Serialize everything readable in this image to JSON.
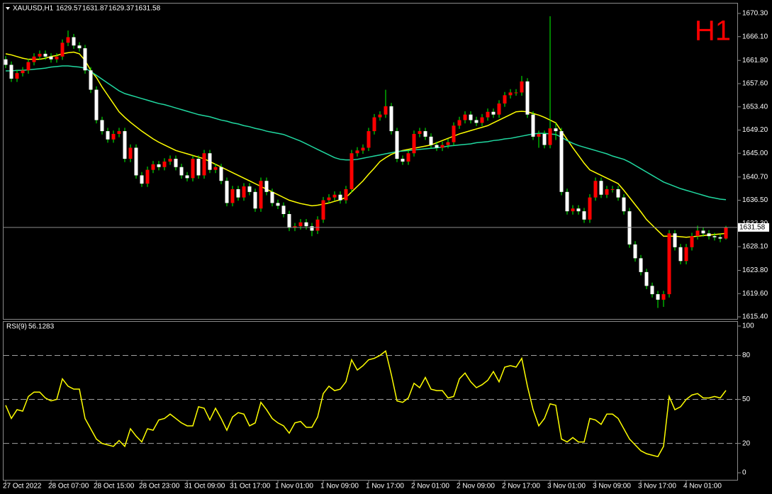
{
  "chart_data": [
    {
      "type": "candlestick",
      "title": "XAUUSD,H1",
      "timeframe": "H1",
      "categories": [
        "27 Oct 2022",
        null,
        null,
        null,
        null,
        null,
        null,
        null,
        "28 Oct 07:00",
        null,
        null,
        null,
        null,
        null,
        null,
        null,
        "28 Oct 15:00",
        null,
        null,
        null,
        null,
        null,
        null,
        null,
        "28 Oct 23:00",
        null,
        null,
        null,
        null,
        null,
        null,
        null,
        "31 Oct 09:00",
        null,
        null,
        null,
        null,
        null,
        null,
        null,
        "31 Oct 17:00",
        null,
        null,
        null,
        null,
        null,
        null,
        null,
        "1 Nov 01:00",
        null,
        null,
        null,
        null,
        null,
        null,
        null,
        "1 Nov 09:00",
        null,
        null,
        null,
        null,
        null,
        null,
        null,
        "1 Nov 17:00",
        null,
        null,
        null,
        null,
        null,
        null,
        null,
        "2 Nov 01:00",
        null,
        null,
        null,
        null,
        null,
        null,
        null,
        "2 Nov 09:00",
        null,
        null,
        null,
        null,
        null,
        null,
        null,
        "2 Nov 17:00",
        null,
        null,
        null,
        null,
        null,
        null,
        null,
        "3 Nov 01:00",
        null,
        null,
        null,
        null,
        null,
        null,
        null,
        "3 Nov 09:00",
        null,
        null,
        null,
        null,
        null,
        null,
        null,
        "3 Nov 17:00",
        null,
        null,
        null,
        null,
        null,
        null,
        null,
        "4 Nov 01:00",
        null,
        null,
        null,
        null,
        null,
        null,
        null
      ],
      "open": [
        1662,
        1661,
        1658.5,
        1659.5,
        1660,
        1661.5,
        1662.5,
        1663,
        1662.5,
        1662,
        1662.5,
        1665,
        1666,
        1664.5,
        1664,
        1660,
        1656.5,
        1651,
        1649,
        1647.5,
        1648.5,
        1649,
        1644,
        1646,
        1641,
        1639.5,
        1642,
        1643,
        1642.5,
        1643.5,
        1644,
        1642.5,
        1641,
        1640.5,
        1644,
        1641,
        1645,
        1642,
        1642.5,
        1640,
        1636,
        1638.5,
        1637,
        1639,
        1638,
        1635,
        1640,
        1638,
        1636,
        1635.5,
        1634,
        1631.5,
        1631.8,
        1632.5,
        1631.8,
        1631,
        1633,
        1636.5,
        1637,
        1637.5,
        1636.5,
        1638.5,
        1645,
        1645.5,
        1646,
        1649,
        1651.5,
        1652,
        1653.5,
        1649,
        1644,
        1643.5,
        1645,
        1648.5,
        1649,
        1648,
        1646.5,
        1646,
        1646.5,
        1647,
        1650,
        1651,
        1652,
        1651,
        1650.5,
        1651.5,
        1652.5,
        1652,
        1654,
        1655.5,
        1656,
        1656,
        1658,
        1652,
        1648,
        1648.5,
        1646.5,
        1649.5,
        1649,
        1638,
        1634.5,
        1635,
        1634.5,
        1633,
        1637,
        1640,
        1637.5,
        1638.5,
        1638.5,
        1637,
        1634.5,
        1628.5,
        1626,
        1623.5,
        1621,
        1619.5,
        1618.5,
        1619.5,
        1630.5,
        1628,
        1625.5,
        1628,
        1630,
        1631,
        1630.5,
        1630,
        1629.8,
        1629.57
      ],
      "high": [
        1662.6,
        1661.6,
        1660.1,
        1660.6,
        1662.1,
        1663.1,
        1663.6,
        1663.6,
        1663.1,
        1663.1,
        1665.6,
        1667.2,
        1666.6,
        1665.1,
        1664.6,
        1660.6,
        1657.1,
        1651.6,
        1649.6,
        1649.1,
        1649.6,
        1649.6,
        1646.6,
        1646.6,
        1641.6,
        1642.6,
        1643.6,
        1643.6,
        1644.1,
        1644.6,
        1644.6,
        1643.1,
        1641.6,
        1644.6,
        1644.6,
        1645.6,
        1645.6,
        1643.1,
        1643.1,
        1640.6,
        1639.1,
        1639.1,
        1639.6,
        1639.6,
        1638.6,
        1640.6,
        1640.6,
        1638.6,
        1636.6,
        1636.1,
        1634.6,
        1632.4,
        1633.1,
        1633.1,
        1632.4,
        1633.6,
        1637.1,
        1637.6,
        1638.1,
        1638.1,
        1639.1,
        1645.6,
        1646.1,
        1646.6,
        1649.6,
        1652.1,
        1652.6,
        1656.5,
        1654.1,
        1649.6,
        1644.6,
        1645.6,
        1649.1,
        1649.6,
        1649.6,
        1648.6,
        1647.1,
        1647.1,
        1647.6,
        1650.6,
        1651.6,
        1652.6,
        1652.6,
        1651.6,
        1652.1,
        1653.1,
        1653.1,
        1654.6,
        1656.1,
        1656.6,
        1656.6,
        1659,
        1658.6,
        1652.6,
        1649.1,
        1649.1,
        1669.8,
        1650.5,
        1649.6,
        1638.6,
        1635.6,
        1635.6,
        1635.1,
        1637.6,
        1640.6,
        1640.6,
        1639.1,
        1639.1,
        1639.1,
        1637.6,
        1635.1,
        1629.1,
        1626.6,
        1624.1,
        1621.6,
        1620.1,
        1620.1,
        1631.1,
        1631.1,
        1628.6,
        1628.6,
        1630.6,
        1631.9,
        1631.6,
        1631.1,
        1630.6,
        1630.4,
        1631.87
      ],
      "low": [
        1660.4,
        1657.9,
        1657.9,
        1658.9,
        1659.4,
        1660.9,
        1661.9,
        1661.9,
        1661.4,
        1661.4,
        1661.9,
        1664.4,
        1663.9,
        1663.4,
        1659.4,
        1655.9,
        1650.4,
        1648.4,
        1646.9,
        1646.9,
        1647.9,
        1643.4,
        1643.4,
        1640.4,
        1638.9,
        1638.9,
        1641.4,
        1641.9,
        1641.9,
        1642.9,
        1641.9,
        1640.4,
        1639.9,
        1639.9,
        1640.4,
        1640.4,
        1641.4,
        1641.4,
        1639.4,
        1635.4,
        1635.4,
        1636.4,
        1636.4,
        1637.4,
        1634.4,
        1634.4,
        1637.4,
        1635.4,
        1634.9,
        1633.4,
        1630.9,
        1630.9,
        1631.2,
        1631.2,
        1630,
        1630.4,
        1632.4,
        1635.9,
        1636.4,
        1635.9,
        1635.9,
        1637.9,
        1644.4,
        1644.9,
        1645.4,
        1648.4,
        1650.9,
        1651.4,
        1648.4,
        1643.4,
        1642.9,
        1642.9,
        1644.4,
        1647.9,
        1647.4,
        1645.9,
        1645.4,
        1645.4,
        1645.9,
        1646.4,
        1649.4,
        1650.4,
        1650.4,
        1649.9,
        1649.9,
        1650.9,
        1651.4,
        1651.4,
        1653.4,
        1654.9,
        1655.4,
        1655.4,
        1651.4,
        1647.4,
        1646,
        1645.9,
        1645.9,
        1647.4,
        1637.4,
        1633.9,
        1633.9,
        1633.9,
        1632.4,
        1632.4,
        1636.4,
        1636.9,
        1636.9,
        1637.9,
        1636.4,
        1633.9,
        1627.9,
        1625.4,
        1622.9,
        1620.4,
        1618.9,
        1617,
        1617.2,
        1618.9,
        1627.4,
        1624.9,
        1624.9,
        1627.4,
        1629.4,
        1629.9,
        1629.4,
        1629.2,
        1628.9,
        1629.37
      ],
      "close": [
        1661,
        1658.5,
        1659.5,
        1660,
        1661.5,
        1662.5,
        1663,
        1662.5,
        1662,
        1662.5,
        1665,
        1666,
        1664.5,
        1664,
        1660,
        1656.5,
        1651,
        1649,
        1647.5,
        1648.5,
        1649,
        1644,
        1646,
        1641,
        1639.5,
        1642,
        1643,
        1642.5,
        1643.5,
        1644,
        1642.5,
        1641,
        1640.5,
        1644,
        1641,
        1645,
        1642,
        1642.5,
        1640,
        1636,
        1638.5,
        1637,
        1639,
        1638,
        1635,
        1640,
        1638,
        1636,
        1635.5,
        1634,
        1631.5,
        1631.8,
        1632.5,
        1631.8,
        1631,
        1633,
        1636.5,
        1637,
        1637.5,
        1636.5,
        1638.5,
        1645,
        1645.5,
        1646,
        1649,
        1651.5,
        1652,
        1653.5,
        1649,
        1644,
        1643.5,
        1645,
        1648.5,
        1649,
        1648,
        1646.5,
        1646,
        1646.5,
        1647,
        1650,
        1651,
        1652,
        1651,
        1650.5,
        1651.5,
        1652.5,
        1652,
        1654,
        1655.5,
        1656,
        1656,
        1658,
        1652,
        1648,
        1648.5,
        1646.5,
        1649.5,
        1649,
        1638,
        1634.5,
        1635,
        1634.5,
        1633,
        1637,
        1640,
        1637.5,
        1638.5,
        1638.5,
        1637,
        1634.5,
        1628.5,
        1626,
        1623.5,
        1621,
        1619.5,
        1618.5,
        1619.5,
        1630.5,
        1628,
        1625.5,
        1628,
        1630,
        1631,
        1630.5,
        1630,
        1629.8,
        1629.57,
        1631.58
      ],
      "up_color": "#ff0000",
      "down_color": "#ffffff",
      "wick_color": "#00ff00",
      "lines": [
        {
          "color": "#ffff00",
          "values": [
            1663,
            1662.8,
            1662.5,
            1662.2,
            1662,
            1662,
            1662,
            1662.2,
            1662.5,
            1662.7,
            1663,
            1663.2,
            1663.3,
            1663,
            1661.8,
            1660,
            1658.7,
            1657,
            1655.5,
            1654,
            1652.5,
            1651.5,
            1650.6,
            1649.8,
            1649,
            1648.3,
            1647.6,
            1647,
            1646.5,
            1646,
            1645.5,
            1645.2,
            1644.9,
            1644.6,
            1644.3,
            1644,
            1643.5,
            1643,
            1642.5,
            1642,
            1641.5,
            1641,
            1640.5,
            1640,
            1639.5,
            1639,
            1638.5,
            1638,
            1637.5,
            1637,
            1636.5,
            1636.2,
            1635.9,
            1635.7,
            1635.5,
            1635.6,
            1635.8,
            1636,
            1636.3,
            1636.6,
            1637,
            1638,
            1639,
            1640,
            1641.2,
            1642.3,
            1643.5,
            1644.2,
            1644.8,
            1645.2,
            1645.5,
            1645.7,
            1645.9,
            1646.1,
            1646.3,
            1646.5,
            1646.9,
            1647.3,
            1647.7,
            1648.1,
            1648.5,
            1648.8,
            1649.1,
            1649.4,
            1649.7,
            1650,
            1650.5,
            1651,
            1651.5,
            1652,
            1652.5,
            1652.6,
            1652.5,
            1652.2,
            1651.9,
            1651.5,
            1651,
            1650.5,
            1649,
            1647.5,
            1646,
            1644.6,
            1643.2,
            1642,
            1641.5,
            1641,
            1640.5,
            1640,
            1639.5,
            1638.3,
            1637,
            1635.7,
            1634.4,
            1633,
            1632,
            1631,
            1630,
            1630,
            1630,
            1629.9,
            1629.8,
            1629.9,
            1630,
            1630.1,
            1630.2,
            1630.3,
            1630.4,
            1630.5
          ]
        },
        {
          "color": "#20d8a0",
          "values": [
            1659.9,
            1659.9,
            1660,
            1660,
            1660.1,
            1660.2,
            1660.3,
            1660.4,
            1660.6,
            1660.7,
            1660.8,
            1660.8,
            1660.7,
            1660.6,
            1660.4,
            1659.8,
            1659.1,
            1658.4,
            1657.7,
            1657,
            1656.3,
            1655.8,
            1655.5,
            1655.2,
            1654.9,
            1654.6,
            1654.3,
            1654,
            1653.8,
            1653.5,
            1653.2,
            1652.9,
            1652.6,
            1652.3,
            1652,
            1651.8,
            1651.6,
            1651.3,
            1651,
            1650.8,
            1650.5,
            1650.3,
            1650,
            1649.8,
            1649.5,
            1649.3,
            1649,
            1648.8,
            1648.6,
            1648.4,
            1648,
            1647.6,
            1647.2,
            1646.7,
            1646.2,
            1645.7,
            1645.2,
            1644.7,
            1644.2,
            1643.9,
            1643.8,
            1643.8,
            1643.9,
            1644.1,
            1644.3,
            1644.5,
            1644.7,
            1644.9,
            1645.1,
            1645.3,
            1645.4,
            1645.5,
            1645.6,
            1645.7,
            1645.8,
            1645.9,
            1646,
            1646.1,
            1646.3,
            1646.4,
            1646.5,
            1646.6,
            1646.7,
            1646.9,
            1647,
            1647.1,
            1647.3,
            1647.4,
            1647.6,
            1647.7,
            1647.9,
            1648.1,
            1648.3,
            1648.5,
            1648.6,
            1648.6,
            1648.5,
            1648.4,
            1647.9,
            1647.3,
            1646.8,
            1646.4,
            1646.1,
            1645.8,
            1645.5,
            1645.2,
            1644.9,
            1644.5,
            1644.2,
            1643.9,
            1643.4,
            1642.8,
            1642.2,
            1641.6,
            1641,
            1640.4,
            1639.8,
            1639.4,
            1639,
            1638.6,
            1638.3,
            1638,
            1637.7,
            1637.4,
            1637.1,
            1636.9,
            1636.7,
            1636.6
          ]
        }
      ],
      "ylim": [
        1615.02,
        1672.22
      ],
      "yticks": [
        {
          "value": 1670.3,
          "label": "1670.30"
        },
        {
          "value": 1666.1,
          "label": "1666.10"
        },
        {
          "value": 1661.8,
          "label": "1661.80"
        },
        {
          "value": 1657.6,
          "label": "1657.60"
        },
        {
          "value": 1653.4,
          "label": "1653.40"
        },
        {
          "value": 1649.2,
          "label": "1649.20"
        },
        {
          "value": 1645,
          "label": "1645.00"
        },
        {
          "value": 1640.7,
          "label": "1640.70"
        },
        {
          "value": 1636.5,
          "label": "1636.50"
        },
        {
          "value": 1632.3,
          "label": "1632.30"
        },
        {
          "value": 1628.1,
          "label": "1628.10"
        },
        {
          "value": 1623.8,
          "label": "1623.80"
        },
        {
          "value": 1619.6,
          "label": "1619.60"
        },
        {
          "value": 1615.4,
          "label": "1615.40"
        }
      ],
      "price_line_color": "#8a8a8a"
    },
    {
      "type": "line",
      "title": "RSI(9)",
      "color": "#ffff00",
      "values": [
        46,
        37,
        43,
        42,
        52,
        55,
        55,
        51,
        49,
        50,
        64,
        59,
        57,
        57,
        37,
        30,
        23,
        20,
        19,
        18,
        22,
        18,
        30,
        25,
        21,
        30,
        29,
        36,
        37,
        40,
        37,
        34,
        32,
        32,
        45,
        44,
        36,
        44,
        37,
        29,
        38,
        41,
        40,
        32,
        34,
        48,
        43,
        37,
        34,
        32,
        27,
        34,
        35,
        31,
        31,
        38,
        54,
        59,
        56,
        57,
        62,
        77,
        70,
        73,
        77,
        78,
        80,
        83,
        67,
        49,
        48,
        51,
        61,
        58,
        65,
        57,
        56,
        56,
        51,
        52,
        64,
        68,
        62,
        58,
        60,
        63,
        69,
        62,
        72,
        73,
        72,
        78,
        59,
        43,
        32,
        37,
        47,
        46,
        23,
        21,
        24,
        21,
        21,
        37,
        36,
        33,
        40,
        40,
        37,
        30,
        23,
        19,
        15,
        13,
        12,
        11,
        18,
        52,
        43,
        45,
        50,
        53,
        54,
        51,
        51,
        52,
        51,
        56.1283
      ],
      "ylim": [
        -4.8,
        103.4
      ],
      "yticks": [
        0,
        20,
        50,
        80,
        100
      ],
      "levels": [
        20,
        50,
        80
      ]
    }
  ]
}
